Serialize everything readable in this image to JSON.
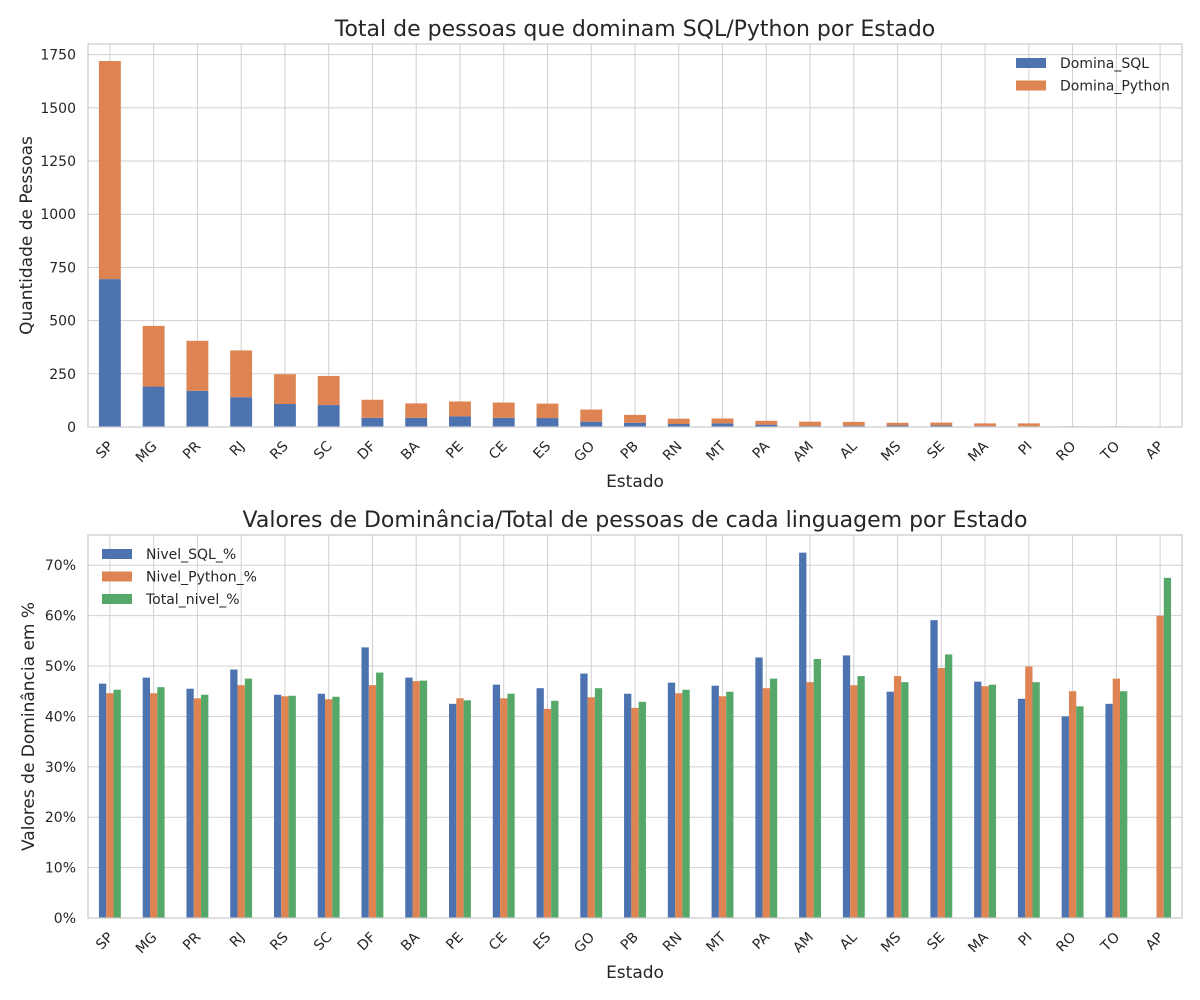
{
  "colors": {
    "blue": "#4C72B0",
    "orange": "#DD8452",
    "green": "#55A868",
    "grid": "#d0d0d0",
    "frame": "#cccccc"
  },
  "chart_data": [
    {
      "type": "bar",
      "stacked": true,
      "title": "Total de pessoas que dominam SQL/Python por Estado",
      "xlabel": "Estado",
      "ylabel": "Quantidade de Pessoas",
      "categories": [
        "SP",
        "MG",
        "PR",
        "RJ",
        "RS",
        "SC",
        "DF",
        "BA",
        "PE",
        "CE",
        "ES",
        "GO",
        "PB",
        "RN",
        "MT",
        "PA",
        "AM",
        "AL",
        "MS",
        "SE",
        "MA",
        "PI",
        "RO",
        "TO",
        "AP"
      ],
      "ylim": [
        0,
        1800
      ],
      "yticks": [
        0,
        250,
        500,
        750,
        1000,
        1250,
        1500,
        1750
      ],
      "ytick_labels": [
        "0",
        "250",
        "500",
        "750",
        "1000",
        "1250",
        "1500",
        "1750"
      ],
      "grid": true,
      "legend_position": "top-right",
      "series": [
        {
          "name": "Domina_SQL",
          "color": "#4C72B0",
          "values": [
            695,
            190,
            170,
            140,
            108,
            103,
            43,
            43,
            50,
            43,
            42,
            25,
            20,
            14,
            17,
            11,
            5,
            6,
            7,
            7,
            4,
            3,
            1,
            1,
            0
          ]
        },
        {
          "name": "Domina_Python",
          "color": "#DD8452",
          "values": [
            1025,
            285,
            235,
            220,
            140,
            137,
            85,
            68,
            70,
            72,
            68,
            57,
            37,
            25,
            23,
            18,
            20,
            18,
            13,
            14,
            13,
            14,
            2,
            2,
            1
          ]
        }
      ]
    },
    {
      "type": "bar",
      "stacked": false,
      "title": "Valores de Dominância/Total de pessoas de cada linguagem por Estado",
      "xlabel": "Estado",
      "ylabel": "Valores de Dominância em %",
      "categories": [
        "SP",
        "MG",
        "PR",
        "RJ",
        "RS",
        "SC",
        "DF",
        "BA",
        "PE",
        "CE",
        "ES",
        "GO",
        "PB",
        "RN",
        "MT",
        "PA",
        "AM",
        "AL",
        "MS",
        "SE",
        "MA",
        "PI",
        "RO",
        "TO",
        "AP"
      ],
      "ylim": [
        0,
        76
      ],
      "yticks": [
        0,
        10,
        20,
        30,
        40,
        50,
        60,
        70
      ],
      "ytick_labels": [
        "0%",
        "10%",
        "20%",
        "30%",
        "40%",
        "50%",
        "60%",
        "70%"
      ],
      "grid": true,
      "legend_position": "top-left",
      "series": [
        {
          "name": "Nivel_SQL_%",
          "color": "#4C72B0",
          "values": [
            46.5,
            47.7,
            45.5,
            49.3,
            44.3,
            44.5,
            53.7,
            47.7,
            42.5,
            46.3,
            45.6,
            48.5,
            44.5,
            46.7,
            46.1,
            51.7,
            72.5,
            52.1,
            44.9,
            59.1,
            46.9,
            43.5,
            40.0,
            42.5,
            0
          ]
        },
        {
          "name": "Nivel_Python_%",
          "color": "#DD8452",
          "values": [
            44.6,
            44.6,
            43.6,
            46.2,
            44.0,
            43.4,
            46.2,
            47.0,
            43.6,
            43.6,
            41.5,
            43.8,
            41.7,
            44.6,
            44.0,
            45.6,
            46.8,
            46.2,
            48.0,
            49.6,
            46.0,
            49.9,
            45.0,
            47.5,
            60.0
          ]
        },
        {
          "name": "Total_nivel_%",
          "color": "#55A868",
          "values": [
            45.3,
            45.8,
            44.3,
            47.5,
            44.1,
            43.9,
            48.7,
            47.1,
            43.2,
            44.5,
            43.1,
            45.6,
            42.9,
            45.3,
            44.9,
            47.5,
            51.4,
            48.0,
            46.8,
            52.3,
            46.3,
            46.8,
            42.0,
            45.0,
            67.5
          ]
        }
      ]
    }
  ]
}
